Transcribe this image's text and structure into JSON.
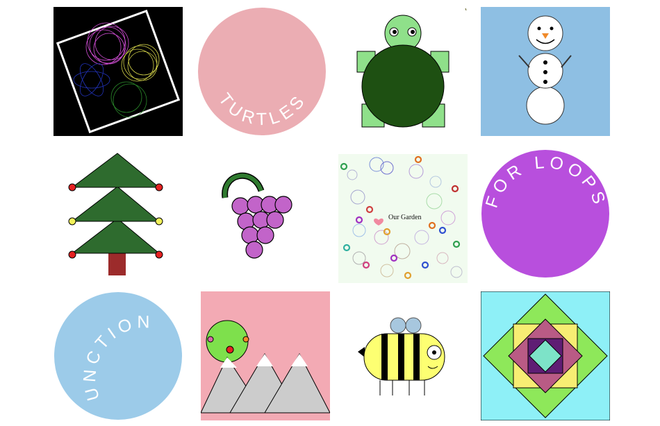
{
  "tiles": [
    {
      "id": "spirograph",
      "colors": {
        "bg": "#000000",
        "frame": "#ffffff"
      }
    },
    {
      "id": "turtles",
      "label": "TURTLES",
      "colors": {
        "circle": "#ebadb3"
      }
    },
    {
      "id": "turtle-drawing",
      "colors": {
        "shell": "#1e5012",
        "skin": "#8fe08a"
      }
    },
    {
      "id": "snowman",
      "colors": {
        "bg": "#8ebfe3"
      }
    },
    {
      "id": "christmas-tree",
      "colors": {
        "leaves": "#2e6b2e",
        "trunk": "#9c2b2b"
      }
    },
    {
      "id": "grapes",
      "colors": {
        "grape": "#c264c9",
        "stem": "#2f7a2f"
      }
    },
    {
      "id": "garden",
      "label": "Our Garden",
      "colors": {
        "bg": "#f1fbef"
      }
    },
    {
      "id": "for-loops",
      "label": "FOR LOOPS",
      "colors": {
        "circle": "#b84fdd"
      }
    },
    {
      "id": "functions",
      "label": "FUNCTIONS",
      "colors": {
        "circle": "#9ccbe9"
      }
    },
    {
      "id": "mountains",
      "colors": {
        "bg": "#f3aab4",
        "tree": "#7ee04c"
      }
    },
    {
      "id": "bee",
      "colors": {
        "body": "#fdff72",
        "wings": "#a7c7de"
      }
    },
    {
      "id": "quilt",
      "colors": {
        "bg": "#8ef0f7",
        "green": "#8ee85a"
      }
    }
  ]
}
